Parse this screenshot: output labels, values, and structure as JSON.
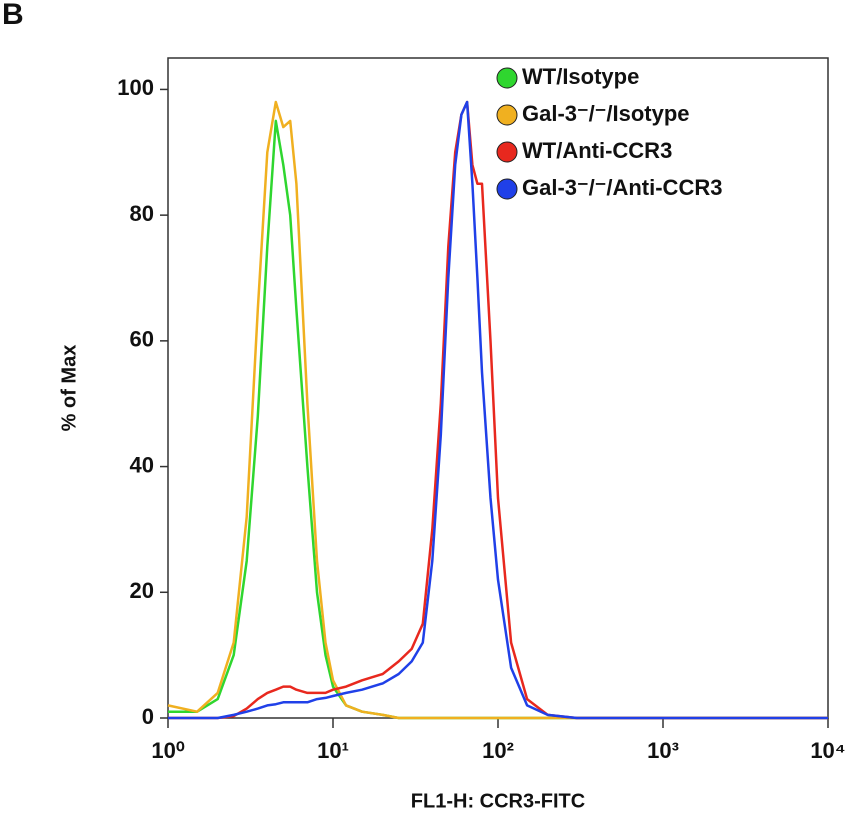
{
  "chart_data": {
    "type": "line",
    "panel_label": "B",
    "xlabel": "FL1-H: CCR3-FITC",
    "ylabel": "% of Max",
    "xscale": "log",
    "xlim": [
      1,
      10000
    ],
    "xticks": [
      {
        "value": 1,
        "label": "10⁰"
      },
      {
        "value": 10,
        "label": "10¹"
      },
      {
        "value": 100,
        "label": "10²"
      },
      {
        "value": 1000,
        "label": "10³"
      },
      {
        "value": 10000,
        "label": "10⁴"
      }
    ],
    "ylim": [
      0,
      105
    ],
    "yticks": [
      0,
      20,
      40,
      60,
      80,
      100
    ],
    "legend": "upper right",
    "x": [
      1,
      1.5,
      2,
      2.5,
      3,
      3.5,
      4,
      4.5,
      5,
      5.5,
      6,
      7,
      8,
      9,
      10,
      12,
      15,
      20,
      25,
      30,
      35,
      40,
      45,
      50,
      55,
      60,
      65,
      70,
      75,
      80,
      90,
      100,
      120,
      150,
      200,
      300,
      1000,
      10000
    ],
    "series": [
      {
        "name": "WT/Isotype",
        "color": "#2fd62f",
        "values": [
          1,
          1,
          3,
          10,
          25,
          48,
          75,
          95,
          88,
          80,
          65,
          40,
          20,
          10,
          5,
          2,
          1,
          0.5,
          0,
          0,
          0,
          0,
          0,
          0,
          0,
          0,
          0,
          0,
          0,
          0,
          0,
          0,
          0,
          0,
          0,
          0,
          0,
          0
        ]
      },
      {
        "name": "Gal-3⁻/⁻/Isotype",
        "color": "#f0b020",
        "values": [
          2,
          1,
          4,
          12,
          32,
          65,
          90,
          98,
          94,
          95,
          85,
          50,
          25,
          12,
          6,
          2,
          1,
          0.5,
          0,
          0,
          0,
          0,
          0,
          0,
          0,
          0,
          0,
          0,
          0,
          0,
          0,
          0,
          0,
          0,
          0,
          0,
          0,
          0
        ]
      },
      {
        "name": "WT/Anti-CCR3",
        "color": "#e8281e",
        "values": [
          0,
          0,
          0,
          0.3,
          1.5,
          3,
          4,
          4.5,
          5,
          5,
          4.5,
          4,
          4,
          4,
          4.5,
          5,
          6,
          7,
          9,
          11,
          15,
          30,
          50,
          75,
          90,
          96,
          98,
          88,
          85,
          85,
          60,
          35,
          12,
          3,
          0.5,
          0,
          0,
          0
        ]
      },
      {
        "name": "Gal-3⁻/⁻/Anti-CCR3",
        "color": "#2040e8",
        "values": [
          0,
          0,
          0,
          0.5,
          1,
          1.5,
          2,
          2.2,
          2.5,
          2.5,
          2.5,
          2.5,
          3,
          3.2,
          3.5,
          4,
          4.5,
          5.5,
          7,
          9,
          12,
          25,
          45,
          70,
          88,
          96,
          98,
          85,
          70,
          55,
          35,
          22,
          8,
          2,
          0.5,
          0,
          0,
          0
        ]
      }
    ]
  }
}
